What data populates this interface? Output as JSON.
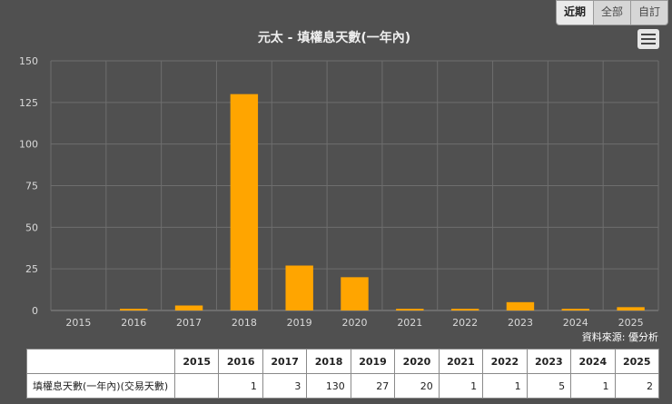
{
  "range_tabs": [
    {
      "label": "近期",
      "active": true
    },
    {
      "label": "全部",
      "active": false
    },
    {
      "label": "自訂",
      "active": false
    }
  ],
  "credit": "資料來源: 優分析",
  "colors": {
    "bar": "#ffa500",
    "background": "#505050",
    "grid": "#6e6e6e"
  },
  "chart_data": {
    "type": "bar",
    "title": "元太 - 填權息天數(一年內)",
    "categories": [
      "2015",
      "2016",
      "2017",
      "2018",
      "2019",
      "2020",
      "2021",
      "2022",
      "2023",
      "2024",
      "2025"
    ],
    "values": [
      null,
      1,
      3,
      130,
      27,
      20,
      1,
      1,
      5,
      1,
      2
    ],
    "ylim": [
      0,
      150
    ],
    "yticks": [
      0,
      25,
      50,
      75,
      100,
      125,
      150
    ],
    "grid": true,
    "xlabel": "",
    "ylabel": ""
  },
  "table": {
    "headers": [
      "",
      "2015",
      "2016",
      "2017",
      "2018",
      "2019",
      "2020",
      "2021",
      "2022",
      "2023",
      "2024",
      "2025"
    ],
    "row_label": "填權息天數(一年內)(交易天數)",
    "row_values": [
      "",
      "1",
      "3",
      "130",
      "27",
      "20",
      "1",
      "1",
      "5",
      "1",
      "2"
    ]
  }
}
